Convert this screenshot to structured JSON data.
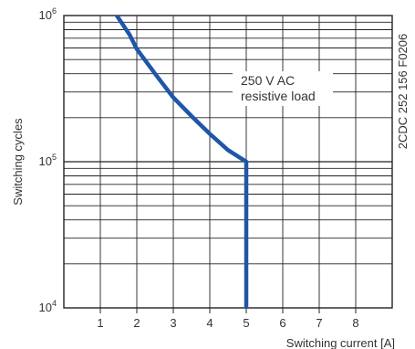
{
  "chart_data": {
    "type": "line",
    "title": "",
    "xlabel": "Switching current [A]",
    "ylabel": "Switching cycles",
    "xlim": [
      0,
      9
    ],
    "ylim": [
      10000,
      1000000
    ],
    "yscale": "log",
    "grid": true,
    "x_ticks": [
      "1",
      "2",
      "3",
      "4",
      "5",
      "6",
      "7",
      "8"
    ],
    "y_ticks": [
      {
        "base": "10",
        "exp": "4",
        "value": 10000
      },
      {
        "base": "10",
        "exp": "5",
        "value": 100000
      },
      {
        "base": "10",
        "exp": "6",
        "value": 1000000
      }
    ],
    "series": [
      {
        "name": "250 V AC resistive load",
        "color": "#1f56a8",
        "x": [
          1.45,
          1.8,
          2.0,
          2.5,
          3.0,
          3.5,
          4.0,
          4.5,
          5.0,
          5.0
        ],
        "y": [
          1000000,
          740000,
          590000,
          400000,
          275000,
          205000,
          155000,
          120000,
          100000,
          10000
        ]
      }
    ],
    "annotation": {
      "line1": "250 V AC",
      "line2": "resistive load"
    },
    "side_code": "2CDC 252 156 F0206"
  }
}
